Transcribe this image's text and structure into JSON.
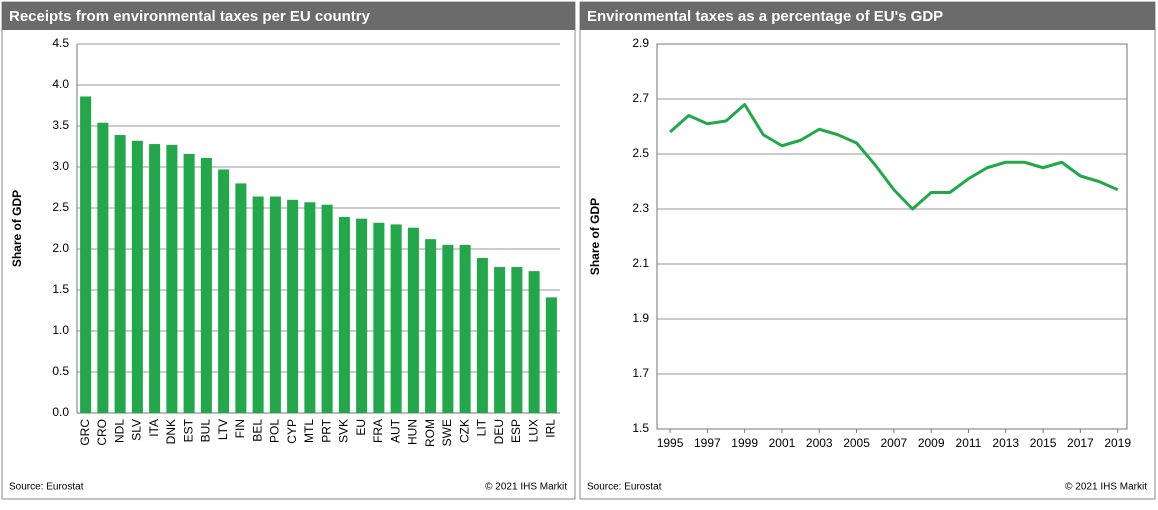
{
  "chart_data": [
    {
      "type": "bar",
      "title": "Receipts from environmental taxes per EU country",
      "y_label": "Share of GDP",
      "source": "Source: Eurostat",
      "credit": "© 2021 IHS Markit",
      "color": "#22a84a",
      "grid": true,
      "categories": [
        "GRC",
        "CRO",
        "NDL",
        "SLV",
        "ITA",
        "DNK",
        "EST",
        "BUL",
        "LTV",
        "FIN",
        "BEL",
        "POL",
        "CYP",
        "MTL",
        "PRT",
        "SVK",
        "EU",
        "FRA",
        "AUT",
        "HUN",
        "ROM",
        "SWE",
        "CZK",
        "LIT",
        "DEU",
        "ESP",
        "LUX",
        "IRL"
      ],
      "values": [
        3.86,
        3.54,
        3.39,
        3.32,
        3.28,
        3.27,
        3.16,
        3.11,
        2.97,
        2.8,
        2.64,
        2.64,
        2.6,
        2.57,
        2.54,
        2.39,
        2.37,
        2.32,
        2.3,
        2.26,
        2.12,
        2.05,
        2.05,
        1.89,
        1.78,
        1.78,
        1.73,
        1.41
      ],
      "ylim": [
        0,
        4.5
      ],
      "yticks": [
        {
          "value": 0,
          "label": "0.0"
        },
        0.5,
        {
          "value": 1,
          "label": "1.0"
        },
        1.5,
        {
          "value": 2,
          "label": "2.0"
        },
        2.5,
        {
          "value": 3,
          "label": "3.0"
        },
        3.5,
        {
          "value": 4,
          "label": "4.0"
        },
        4.5
      ]
    },
    {
      "type": "line",
      "title": "Environmental taxes as a percentage of EU's GDP",
      "y_label": "Share of GDP",
      "source": "Source: Eurostat",
      "credit": "© 2021 IHS Markit",
      "color": "#22a84a",
      "grid": true,
      "x": [
        1995,
        1996,
        1997,
        1998,
        1999,
        2000,
        2001,
        2002,
        2003,
        2004,
        2005,
        2006,
        2007,
        2008,
        2009,
        2010,
        2011,
        2012,
        2013,
        2014,
        2015,
        2016,
        2017,
        2018,
        2019
      ],
      "values": [
        2.58,
        2.64,
        2.61,
        2.62,
        2.68,
        2.57,
        2.53,
        2.55,
        2.59,
        2.57,
        2.54,
        2.46,
        2.37,
        2.3,
        2.36,
        2.36,
        2.41,
        2.45,
        2.47,
        2.47,
        2.45,
        2.47,
        2.42,
        2.4,
        2.37
      ],
      "xlim": [
        1994.3,
        2019.5
      ],
      "xticks": [
        1995,
        1997,
        1999,
        2001,
        2003,
        2005,
        2007,
        2009,
        2011,
        2013,
        2015,
        2017,
        2019
      ],
      "ylim": [
        1.5,
        2.9
      ],
      "yticks": [
        1.5,
        1.7,
        1.9,
        2.1,
        2.3,
        2.5,
        2.7,
        2.9
      ]
    }
  ]
}
